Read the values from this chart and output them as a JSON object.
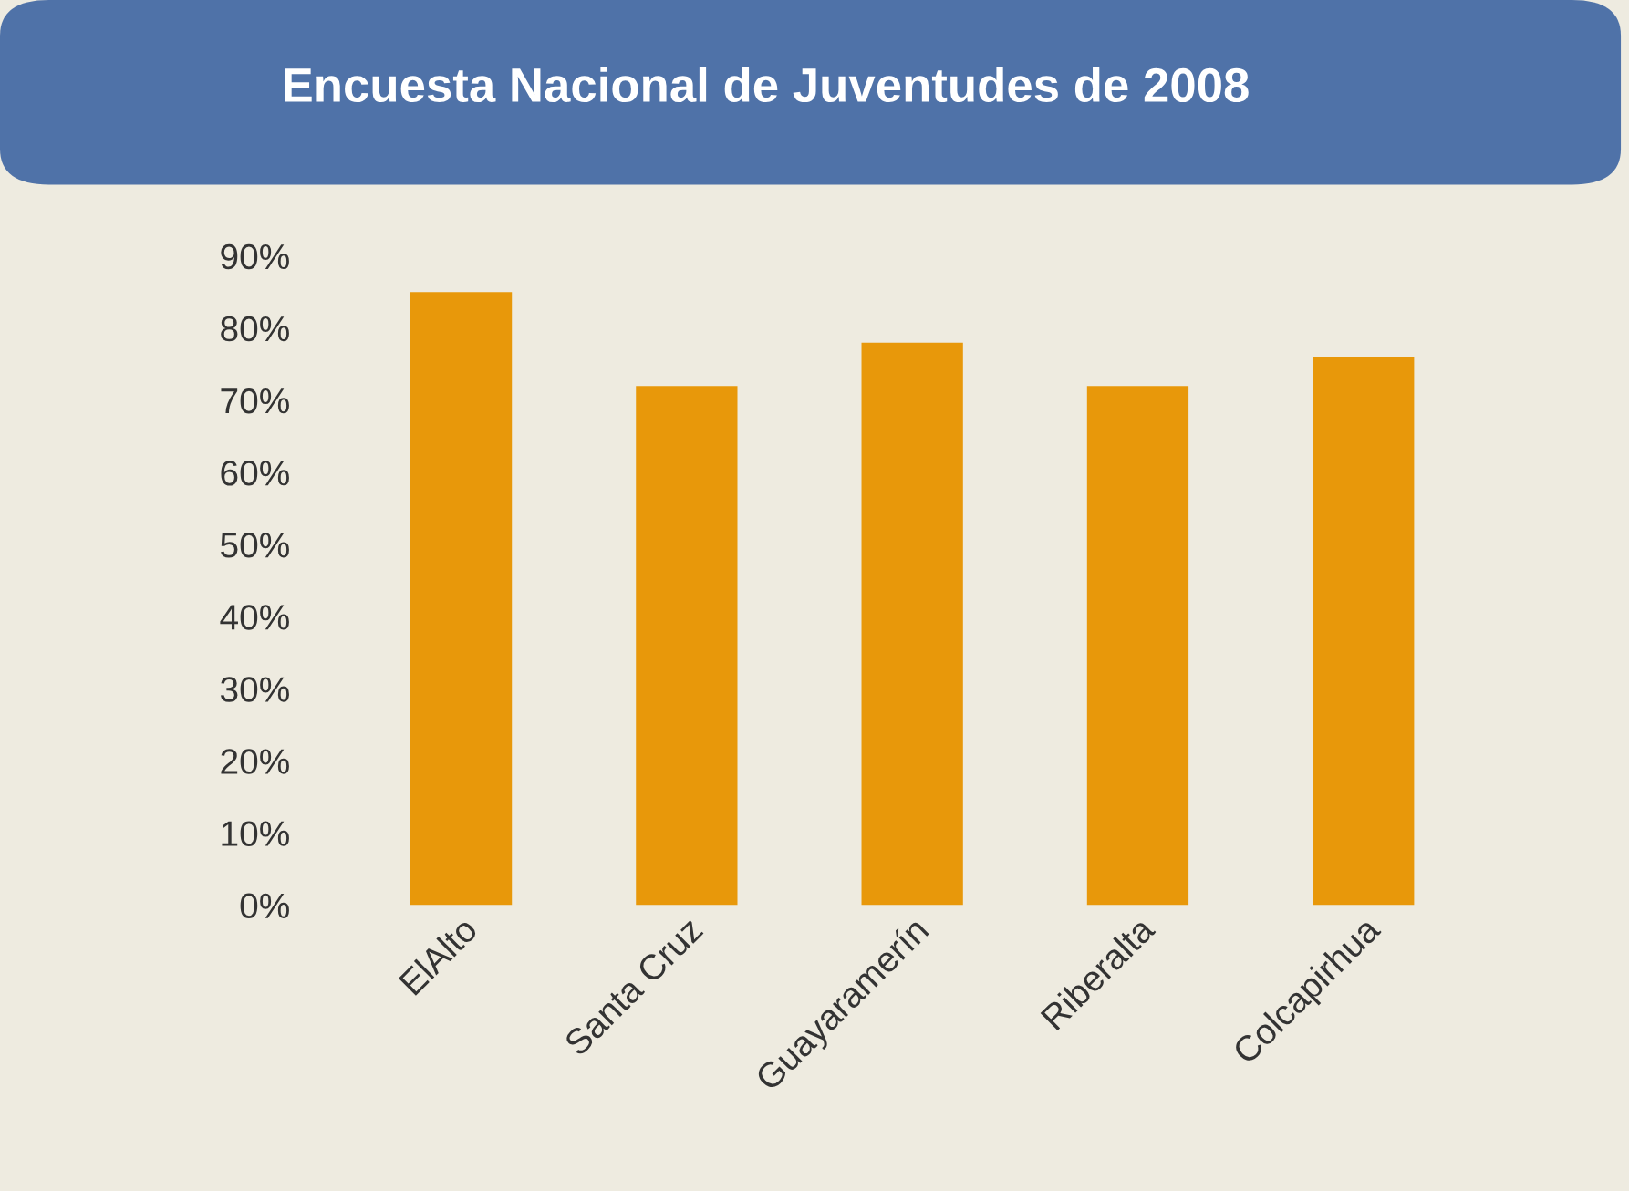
{
  "chart_data": {
    "type": "bar",
    "title": "Encuesta Nacional de Juventudes de 2008",
    "categories": [
      "ElAlto",
      "Santa Cruz",
      "Guayaramerín",
      "Riberalta",
      "Colcapirhua"
    ],
    "values": [
      85,
      72,
      78,
      72,
      76
    ],
    "color": "#e8980a",
    "ylim": [
      0,
      90
    ],
    "yticks": [
      {
        "value": 0,
        "label": "0%"
      },
      {
        "value": 10,
        "label": "10%"
      },
      {
        "value": 20,
        "label": "20%"
      },
      {
        "value": 30,
        "label": "30%"
      },
      {
        "value": 40,
        "label": "40%"
      },
      {
        "value": 50,
        "label": "50%"
      },
      {
        "value": 60,
        "label": "60%"
      },
      {
        "value": 70,
        "label": "70%"
      },
      {
        "value": 80,
        "label": "80%"
      },
      {
        "value": 90,
        "label": "90%"
      }
    ],
    "grid": false
  }
}
